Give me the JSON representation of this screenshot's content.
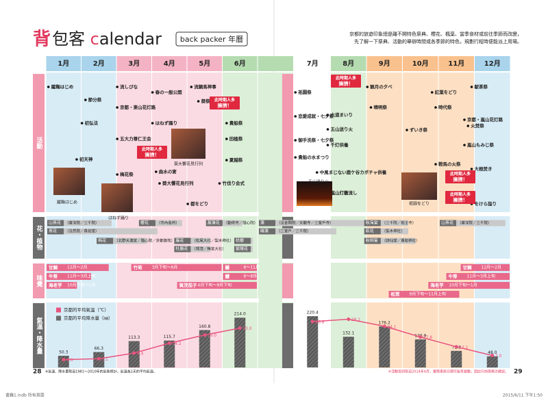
{
  "header": {
    "title_red": "背",
    "title_main": "包客 ",
    "title_c": "c",
    "title_rest": "alendar",
    "subtitle": "back packer 年曆",
    "intro": [
      "京都的旅遊印象總是離不開特色祭典、櫻花、楓葉、當季食材或前往季節而改變，",
      "先了解一下祭典、活動的舉辦時間或各季節的特色，規劃行程時便能派上用場。"
    ]
  },
  "months": [
    "1月",
    "2月",
    "3月",
    "4月",
    "5月",
    "6月",
    "7月",
    "8月",
    "9月",
    "10月",
    "11月",
    "12月"
  ],
  "sections": [
    "活動",
    "花・植物",
    "味覺",
    "氣溫・降水量"
  ],
  "events": [
    "蹴鞠はじめ",
    "節分祭",
    "初弘法",
    "初天神",
    "流しびな",
    "春の一般公開",
    "京都・東山花灯路",
    "はねず踊り",
    "五大力尊仁王会",
    "梅花祭",
    "曲水の宴",
    "流鏑馬神事",
    "葵祭",
    "葵大饗花見行列",
    "都をどり",
    "貴船祭",
    "田植祭",
    "夏越祭",
    "竹伐り会式",
    "祇園祭",
    "恋愛成就・七夕祭",
    "御手洗祭・七夕祭",
    "貴船の水まつり",
    "六道まいり",
    "五山送り火",
    "千灯供養",
    "中風まじない鹿ケ谷カボチャ供養",
    "嵐山灯籠流し",
    "観月の夕べ",
    "晴明祭",
    "紅葉をどり",
    "ずいき祭",
    "時代祭",
    "鞍馬の火祭",
    "献茶祭",
    "京都・嵐山花灯路",
    "火焚祭",
    "嵐山もみじ祭",
    "大根焚き",
    "をけら詣り"
  ],
  "callouts": [
    {
      "line1": "此時期人多",
      "line2": "擁擠！"
    },
    {
      "line1": "此時期人多",
      "line2": "擁擠！"
    },
    {
      "line1": "此時期人多",
      "line2": "擁擠！"
    },
    {
      "line1": "此時期人多",
      "line2": "擁擠！"
    },
    {
      "line1": "此時期人多",
      "line2": "擁擠！"
    }
  ],
  "photos": [
    "蹴鞠はじめ",
    "はねず踊り",
    "葵大饗花見行列",
    "五山送り火",
    "祇園をどり"
  ],
  "flowers": [
    {
      "name": "山茶花",
      "note": "（蔣深院／三千院）"
    },
    {
      "name": "茶花",
      "note": "（法然院／真如堂）"
    },
    {
      "name": "梅花",
      "note": "（北野天滿宮／隨心院／京都御苑）"
    },
    {
      "name": "櫻花",
      "note": "（市內各所）"
    },
    {
      "name": "藤花",
      "note": "（松尾大社／梨木神社）"
    },
    {
      "name": "杜鵑花",
      "note": "（賀茂／梅宮大社）"
    },
    {
      "name": "菖蒲花",
      "note": "（勸修寺／隨心院）"
    },
    {
      "name": "桔梗",
      "note": ""
    },
    {
      "name": "紫陽花",
      "note": ""
    },
    {
      "name": "蓮",
      "note": "（法金剛院／天龍寺／三室戶寺）"
    },
    {
      "name": "睡蓮",
      "note": "（三室戶／三千院）"
    },
    {
      "name": "秋海棠",
      "note": "（三千院／祇王寺）"
    },
    {
      "name": "萩花",
      "note": "（梨木神社）"
    },
    {
      "name": "秋明菊",
      "note": "（詩仙堂／貴船神社）"
    },
    {
      "name": "山茶花",
      "note": "（蔣深院／三千院）"
    }
  ],
  "tastes": [
    {
      "name": "甘鯛",
      "period": "12月～2月"
    },
    {
      "name": "牛蒡",
      "period": "11月～3月上旬"
    },
    {
      "name": "海老芋",
      "period": "10月下旬～1月"
    },
    {
      "name": "竹筍",
      "period": "3月下旬～6月"
    },
    {
      "name": "鰻",
      "period": "6～11月"
    },
    {
      "name": "鱧",
      "period": "6～8月"
    },
    {
      "name": "賀茂茄子",
      "period": "4月下旬～9月下旬"
    },
    {
      "name": "甘鯛",
      "period": "12月～2月"
    },
    {
      "name": "牛蒡",
      "period": "11月～3月上旬"
    },
    {
      "name": "海老芋",
      "period": "10月下旬～1月"
    },
    {
      "name": "松茸",
      "period": "9月下旬～11月上旬"
    }
  ],
  "chart_data": {
    "type": "combo",
    "series": [
      {
        "name": "京都的平均氣溫（℃）",
        "color": "#e8547e",
        "values": [
          4.6,
          5.1,
          8.4,
          14.2,
          19.0,
          23.0,
          26.8,
          28.2,
          24.1,
          17.8,
          12.1,
          7.0
        ],
        "value_labels": [
          "4.6",
          "5.1",
          "8.4",
          "14.2",
          "19.0",
          "23.0",
          "26.8",
          "28.2",
          "24.1",
          "17.8",
          "12.1",
          "7.0"
        ]
      },
      {
        "name": "京都的平均降水量（㎜）",
        "color": "#6b6b6b",
        "values": [
          50.3,
          66.3,
          113.3,
          115.7,
          160.8,
          214.0,
          220.4,
          132.1,
          176.2,
          120.9,
          71.3,
          48.0
        ],
        "value_labels": [
          "50.3",
          "66.3",
          "113.3",
          "115.7",
          "160.8",
          "214.0",
          "220.4",
          "132.1",
          "176.2",
          "120.9",
          "71.3",
          "48.0"
        ]
      }
    ]
  },
  "footer": {
    "left_note": "※氣溫、降水量取自1981～2010年的氣象統計，氣溫為1天的平均氣溫。",
    "right_note": "※活動資訊取自2014年4月，實際舉辦日期可能有變動，因此行前需再次確認。",
    "page_left": "28",
    "page_right": "29",
    "file": "書籍1.indb  所有頁面",
    "stamp": "2015/6/11  下午1:50"
  }
}
